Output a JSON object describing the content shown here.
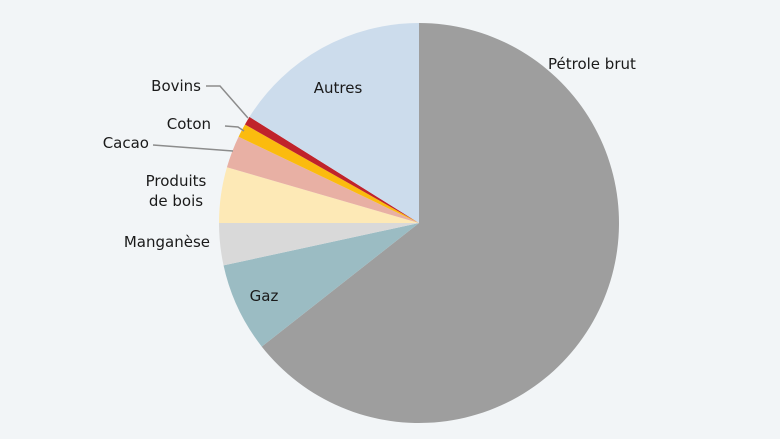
{
  "chart_data": {
    "type": "pie",
    "title": "",
    "start": "top, clockwise",
    "slices": [
      {
        "label": "Pétrole brut",
        "value": 64.4,
        "color": "#9e9e9e"
      },
      {
        "label": "Gaz",
        "value": 7.2,
        "color": "#9bbcc3"
      },
      {
        "label": "Manganèse",
        "value": 3.4,
        "color": "#d9d9d9"
      },
      {
        "label": "Produits de bois",
        "label_lines": [
          "Produits",
          "de bois"
        ],
        "value": 4.5,
        "color": "#fde9b6"
      },
      {
        "label": "Cacao",
        "value": 2.6,
        "color": "#e8b0a4"
      },
      {
        "label": "Coton",
        "value": 1.1,
        "color": "#fbbb0e"
      },
      {
        "label": "Bovins",
        "value": 0.7,
        "color": "#c0232b"
      },
      {
        "label": "Autres",
        "value": 16.1,
        "color": "#ccdcec"
      }
    ],
    "background": "#f2f5f7"
  }
}
